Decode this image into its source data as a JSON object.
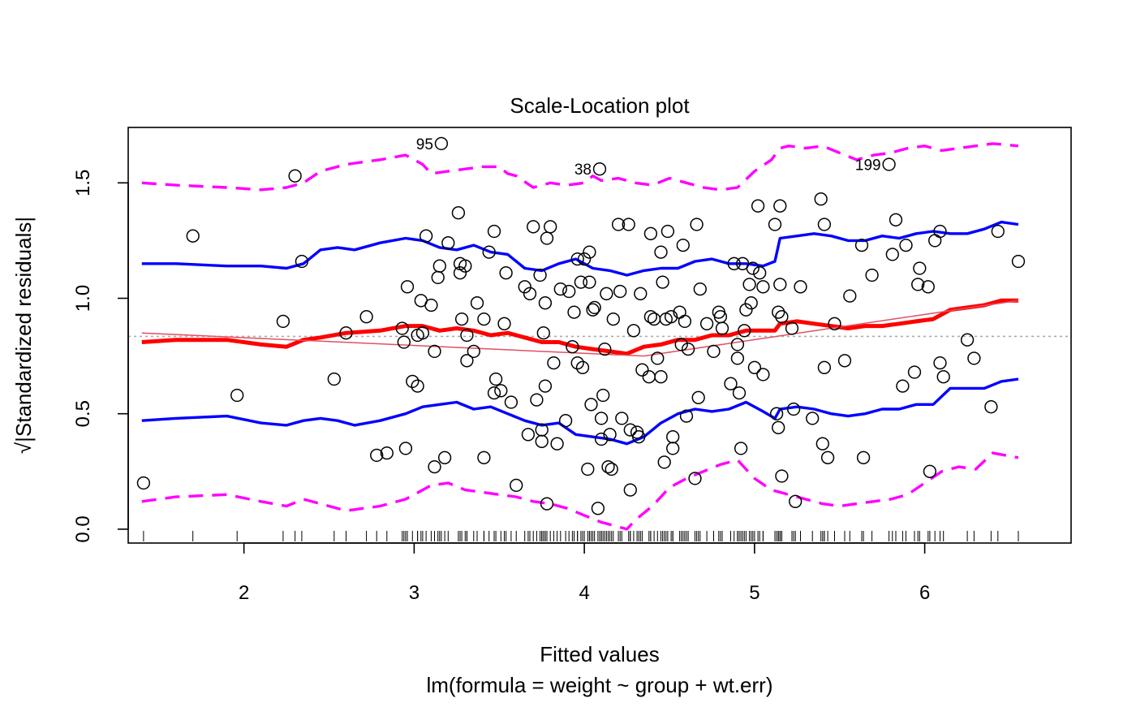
{
  "chart_data": {
    "type": "scatter",
    "title": "Scale-Location plot",
    "xlabel": "Fitted values",
    "subtitle": "lm(formula = weight ~ group + wt.err)",
    "ylabel": "√|Standardized residuals|",
    "xlim": [
      1.32,
      6.86
    ],
    "ylim": [
      -0.06,
      1.74
    ],
    "xticks": [
      2,
      3,
      4,
      5,
      6
    ],
    "yticks": [
      0.0,
      0.5,
      1.0,
      1.5
    ],
    "xtick_labels": [
      "2",
      "3",
      "4",
      "5",
      "6"
    ],
    "ytick_labels": [
      "0.0",
      "0.5",
      "1.0",
      "1.5"
    ],
    "grid": false,
    "reference_line_y": 0.835,
    "point_labels": [
      {
        "label": "95",
        "x": 3.16,
        "y": 1.67
      },
      {
        "label": "38",
        "x": 4.09,
        "y": 1.56
      },
      {
        "label": "199",
        "x": 5.79,
        "y": 1.58
      }
    ],
    "points": [
      [
        1.41,
        0.2
      ],
      [
        1.7,
        1.27
      ],
      [
        1.96,
        0.58
      ],
      [
        2.23,
        0.9
      ],
      [
        2.3,
        1.53
      ],
      [
        2.34,
        1.16
      ],
      [
        2.53,
        0.65
      ],
      [
        2.6,
        0.85
      ],
      [
        2.72,
        0.92
      ],
      [
        2.78,
        0.32
      ],
      [
        2.84,
        0.33
      ],
      [
        2.93,
        0.87
      ],
      [
        2.94,
        0.81
      ],
      [
        2.95,
        0.35
      ],
      [
        2.96,
        1.05
      ],
      [
        2.99,
        0.64
      ],
      [
        3.02,
        0.62
      ],
      [
        3.02,
        0.84
      ],
      [
        3.04,
        0.99
      ],
      [
        3.05,
        0.85
      ],
      [
        3.07,
        1.27
      ],
      [
        3.1,
        0.97
      ],
      [
        3.12,
        0.27
      ],
      [
        3.12,
        0.77
      ],
      [
        3.14,
        1.09
      ],
      [
        3.16,
        1.67
      ],
      [
        3.15,
        1.14
      ],
      [
        3.18,
        0.31
      ],
      [
        3.2,
        1.24
      ],
      [
        3.26,
        1.37
      ],
      [
        3.27,
        1.11
      ],
      [
        3.27,
        1.15
      ],
      [
        3.28,
        0.91
      ],
      [
        3.3,
        1.14
      ],
      [
        3.31,
        0.73
      ],
      [
        3.31,
        0.84
      ],
      [
        3.35,
        0.77
      ],
      [
        3.37,
        0.98
      ],
      [
        3.41,
        0.31
      ],
      [
        3.41,
        0.91
      ],
      [
        3.44,
        1.2
      ],
      [
        3.47,
        0.59
      ],
      [
        3.47,
        1.29
      ],
      [
        3.48,
        0.65
      ],
      [
        3.51,
        0.6
      ],
      [
        3.54,
        1.11
      ],
      [
        3.53,
        0.89
      ],
      [
        3.57,
        0.55
      ],
      [
        3.6,
        0.19
      ],
      [
        3.65,
        1.05
      ],
      [
        3.67,
        0.41
      ],
      [
        3.68,
        1.02
      ],
      [
        3.7,
        1.31
      ],
      [
        3.72,
        0.56
      ],
      [
        3.74,
        1.1
      ],
      [
        3.75,
        0.38
      ],
      [
        3.75,
        0.43
      ],
      [
        3.76,
        0.85
      ],
      [
        3.77,
        0.62
      ],
      [
        3.77,
        0.98
      ],
      [
        3.78,
        1.26
      ],
      [
        3.78,
        0.11
      ],
      [
        3.8,
        1.31
      ],
      [
        3.82,
        0.72
      ],
      [
        3.84,
        0.37
      ],
      [
        3.86,
        1.04
      ],
      [
        3.89,
        0.47
      ],
      [
        3.91,
        1.03
      ],
      [
        3.93,
        0.79
      ],
      [
        3.94,
        0.94
      ],
      [
        3.96,
        1.17
      ],
      [
        3.96,
        0.72
      ],
      [
        3.98,
        1.07
      ],
      [
        3.99,
        0.7
      ],
      [
        4.0,
        1.17
      ],
      [
        4.02,
        0.26
      ],
      [
        4.03,
        1.07
      ],
      [
        4.03,
        1.2
      ],
      [
        4.04,
        0.54
      ],
      [
        4.05,
        0.95
      ],
      [
        4.06,
        0.96
      ],
      [
        4.08,
        0.09
      ],
      [
        4.09,
        1.56
      ],
      [
        4.1,
        0.39
      ],
      [
        4.1,
        0.48
      ],
      [
        4.11,
        0.58
      ],
      [
        4.12,
        0.78
      ],
      [
        4.13,
        1.02
      ],
      [
        4.14,
        0.27
      ],
      [
        4.15,
        0.41
      ],
      [
        4.16,
        0.26
      ],
      [
        4.17,
        0.91
      ],
      [
        4.2,
        1.32
      ],
      [
        4.21,
        1.03
      ],
      [
        4.22,
        0.48
      ],
      [
        4.26,
        1.32
      ],
      [
        4.27,
        0.17
      ],
      [
        4.27,
        0.43
      ],
      [
        4.29,
        0.86
      ],
      [
        4.31,
        0.42
      ],
      [
        4.32,
        0.4
      ],
      [
        4.33,
        1.02
      ],
      [
        4.34,
        0.69
      ],
      [
        4.38,
        0.66
      ],
      [
        4.39,
        0.92
      ],
      [
        4.39,
        1.28
      ],
      [
        4.41,
        0.91
      ],
      [
        4.43,
        0.74
      ],
      [
        4.45,
        0.66
      ],
      [
        4.45,
        1.2
      ],
      [
        4.47,
        0.29
      ],
      [
        4.46,
        1.07
      ],
      [
        4.48,
        0.91
      ],
      [
        4.49,
        1.29
      ],
      [
        4.51,
        0.92
      ],
      [
        4.52,
        0.4
      ],
      [
        4.52,
        0.35
      ],
      [
        4.56,
        0.94
      ],
      [
        4.57,
        0.8
      ],
      [
        4.58,
        1.23
      ],
      [
        4.59,
        0.9
      ],
      [
        4.6,
        0.49
      ],
      [
        4.61,
        0.78
      ],
      [
        4.65,
        0.22
      ],
      [
        4.66,
        1.32
      ],
      [
        4.67,
        0.57
      ],
      [
        4.68,
        1.04
      ],
      [
        4.72,
        0.89
      ],
      [
        4.76,
        0.77
      ],
      [
        4.79,
        0.94
      ],
      [
        4.8,
        0.92
      ],
      [
        4.81,
        0.87
      ],
      [
        4.86,
        0.63
      ],
      [
        4.88,
        1.15
      ],
      [
        4.9,
        0.74
      ],
      [
        4.9,
        0.8
      ],
      [
        4.91,
        0.59
      ],
      [
        4.92,
        0.35
      ],
      [
        4.93,
        1.15
      ],
      [
        4.94,
        0.86
      ],
      [
        4.95,
        0.95
      ],
      [
        4.97,
        1.06
      ],
      [
        4.98,
        0.98
      ],
      [
        4.99,
        1.13
      ],
      [
        5.0,
        0.7
      ],
      [
        5.02,
        1.4
      ],
      [
        5.03,
        1.11
      ],
      [
        5.05,
        1.05
      ],
      [
        5.05,
        0.67
      ],
      [
        5.12,
        1.32
      ],
      [
        5.13,
        0.5
      ],
      [
        5.14,
        0.44
      ],
      [
        5.14,
        0.94
      ],
      [
        5.15,
        1.06
      ],
      [
        5.15,
        1.4
      ],
      [
        5.16,
        0.92
      ],
      [
        5.16,
        0.23
      ],
      [
        5.22,
        0.87
      ],
      [
        5.23,
        0.52
      ],
      [
        5.24,
        0.12
      ],
      [
        5.27,
        1.05
      ],
      [
        5.34,
        0.48
      ],
      [
        5.39,
        1.43
      ],
      [
        5.4,
        0.37
      ],
      [
        5.41,
        1.32
      ],
      [
        5.41,
        0.7
      ],
      [
        5.43,
        0.31
      ],
      [
        5.47,
        0.89
      ],
      [
        5.53,
        0.73
      ],
      [
        5.56,
        1.01
      ],
      [
        5.63,
        1.23
      ],
      [
        5.64,
        0.31
      ],
      [
        5.69,
        1.1
      ],
      [
        5.79,
        1.58
      ],
      [
        5.81,
        1.19
      ],
      [
        5.83,
        1.34
      ],
      [
        5.87,
        0.62
      ],
      [
        5.89,
        1.23
      ],
      [
        5.94,
        0.68
      ],
      [
        5.96,
        1.06
      ],
      [
        5.97,
        1.13
      ],
      [
        6.02,
        1.05
      ],
      [
        6.03,
        0.25
      ],
      [
        6.06,
        1.25
      ],
      [
        6.09,
        0.72
      ],
      [
        6.09,
        1.29
      ],
      [
        6.11,
        0.66
      ],
      [
        6.25,
        0.82
      ],
      [
        6.29,
        0.74
      ],
      [
        6.39,
        0.53
      ],
      [
        6.43,
        1.29
      ],
      [
        6.55,
        1.16
      ]
    ],
    "series": [
      {
        "name": "",
        "color": "#ff00ff",
        "style": "dashed",
        "x": [
          1.4,
          1.6,
          1.9,
          2.1,
          2.25,
          2.35,
          2.45,
          2.6,
          2.8,
          2.95,
          3.05,
          3.1,
          3.2,
          3.3,
          3.4,
          3.5,
          3.55,
          3.6,
          3.7,
          3.8,
          3.9,
          4.0,
          4.05,
          4.1,
          4.2,
          4.3,
          4.4,
          4.5,
          4.6,
          4.7,
          4.8,
          4.9,
          5.0,
          5.1,
          5.15,
          5.2,
          5.3,
          5.4,
          5.5,
          5.6,
          5.7,
          5.8,
          5.9,
          6.0,
          6.1,
          6.2,
          6.3,
          6.4,
          6.55
        ],
        "y": [
          1.5,
          1.49,
          1.48,
          1.47,
          1.48,
          1.5,
          1.55,
          1.58,
          1.6,
          1.62,
          1.58,
          1.54,
          1.55,
          1.56,
          1.57,
          1.57,
          1.54,
          1.53,
          1.48,
          1.5,
          1.49,
          1.5,
          1.53,
          1.51,
          1.52,
          1.5,
          1.49,
          1.52,
          1.5,
          1.48,
          1.47,
          1.48,
          1.55,
          1.6,
          1.65,
          1.66,
          1.65,
          1.66,
          1.63,
          1.6,
          1.62,
          1.63,
          1.65,
          1.66,
          1.64,
          1.65,
          1.66,
          1.67,
          1.66
        ]
      },
      {
        "name": "",
        "color": "#ff00ff",
        "style": "dashed",
        "x": [
          1.4,
          1.6,
          1.9,
          2.1,
          2.25,
          2.35,
          2.45,
          2.6,
          2.8,
          2.95,
          3.05,
          3.1,
          3.2,
          3.3,
          3.4,
          3.5,
          3.6,
          3.7,
          3.8,
          3.9,
          4.0,
          4.1,
          4.2,
          4.25,
          4.3,
          4.4,
          4.5,
          4.6,
          4.7,
          4.8,
          4.9,
          5.0,
          5.1,
          5.2,
          5.3,
          5.4,
          5.5,
          5.6,
          5.7,
          5.8,
          5.9,
          6.0,
          6.1,
          6.2,
          6.3,
          6.4,
          6.55
        ],
        "y": [
          0.12,
          0.14,
          0.15,
          0.12,
          0.1,
          0.13,
          0.11,
          0.08,
          0.1,
          0.13,
          0.17,
          0.19,
          0.2,
          0.17,
          0.16,
          0.15,
          0.14,
          0.12,
          0.11,
          0.09,
          0.06,
          0.03,
          0.01,
          0.0,
          0.04,
          0.1,
          0.18,
          0.22,
          0.25,
          0.28,
          0.3,
          0.22,
          0.17,
          0.15,
          0.13,
          0.11,
          0.1,
          0.11,
          0.12,
          0.13,
          0.15,
          0.2,
          0.25,
          0.27,
          0.26,
          0.33,
          0.31
        ]
      },
      {
        "name": "",
        "color": "#0000ff",
        "style": "solid",
        "x": [
          1.4,
          1.6,
          1.9,
          2.1,
          2.25,
          2.35,
          2.45,
          2.55,
          2.65,
          2.8,
          2.95,
          3.05,
          3.15,
          3.25,
          3.35,
          3.45,
          3.55,
          3.65,
          3.75,
          3.85,
          3.95,
          4.05,
          4.15,
          4.25,
          4.35,
          4.45,
          4.55,
          4.65,
          4.75,
          4.85,
          4.95,
          5.05,
          5.12,
          5.15,
          5.25,
          5.35,
          5.45,
          5.55,
          5.65,
          5.75,
          5.85,
          5.95,
          6.05,
          6.15,
          6.25,
          6.35,
          6.45,
          6.55
        ],
        "y": [
          1.15,
          1.15,
          1.14,
          1.14,
          1.13,
          1.15,
          1.21,
          1.22,
          1.21,
          1.24,
          1.26,
          1.25,
          1.22,
          1.21,
          1.23,
          1.2,
          1.19,
          1.13,
          1.12,
          1.15,
          1.17,
          1.13,
          1.12,
          1.1,
          1.12,
          1.13,
          1.13,
          1.16,
          1.17,
          1.15,
          1.15,
          1.14,
          1.16,
          1.26,
          1.27,
          1.28,
          1.27,
          1.25,
          1.25,
          1.27,
          1.26,
          1.28,
          1.29,
          1.28,
          1.28,
          1.3,
          1.33,
          1.32
        ]
      },
      {
        "name": "",
        "color": "#0000ff",
        "style": "solid",
        "x": [
          1.4,
          1.6,
          1.9,
          2.1,
          2.25,
          2.35,
          2.45,
          2.55,
          2.65,
          2.8,
          2.95,
          3.05,
          3.15,
          3.25,
          3.35,
          3.45,
          3.55,
          3.65,
          3.75,
          3.85,
          3.95,
          4.05,
          4.15,
          4.25,
          4.35,
          4.45,
          4.55,
          4.65,
          4.75,
          4.85,
          4.95,
          5.05,
          5.12,
          5.15,
          5.25,
          5.35,
          5.45,
          5.55,
          5.65,
          5.75,
          5.85,
          5.95,
          6.05,
          6.15,
          6.25,
          6.35,
          6.45,
          6.55
        ],
        "y": [
          0.47,
          0.48,
          0.49,
          0.46,
          0.45,
          0.47,
          0.48,
          0.47,
          0.45,
          0.47,
          0.5,
          0.53,
          0.54,
          0.55,
          0.52,
          0.53,
          0.5,
          0.47,
          0.45,
          0.46,
          0.41,
          0.4,
          0.39,
          0.37,
          0.4,
          0.46,
          0.5,
          0.52,
          0.51,
          0.52,
          0.55,
          0.51,
          0.48,
          0.52,
          0.53,
          0.52,
          0.5,
          0.49,
          0.5,
          0.52,
          0.52,
          0.54,
          0.54,
          0.61,
          0.61,
          0.61,
          0.64,
          0.65
        ]
      },
      {
        "name": "",
        "color": "#ff0000",
        "style": "solid",
        "x": [
          1.4,
          1.6,
          1.9,
          2.1,
          2.25,
          2.35,
          2.45,
          2.6,
          2.8,
          2.95,
          3.05,
          3.15,
          3.25,
          3.35,
          3.45,
          3.55,
          3.65,
          3.75,
          3.85,
          3.95,
          4.05,
          4.15,
          4.25,
          4.35,
          4.45,
          4.55,
          4.65,
          4.75,
          4.85,
          4.95,
          5.05,
          5.12,
          5.15,
          5.25,
          5.35,
          5.45,
          5.55,
          5.65,
          5.75,
          5.85,
          5.95,
          6.05,
          6.15,
          6.25,
          6.35,
          6.45,
          6.55
        ],
        "y": [
          0.81,
          0.82,
          0.82,
          0.8,
          0.79,
          0.82,
          0.83,
          0.85,
          0.86,
          0.88,
          0.88,
          0.86,
          0.87,
          0.86,
          0.84,
          0.85,
          0.83,
          0.81,
          0.81,
          0.79,
          0.78,
          0.77,
          0.76,
          0.79,
          0.8,
          0.82,
          0.82,
          0.84,
          0.84,
          0.86,
          0.86,
          0.86,
          0.89,
          0.9,
          0.89,
          0.88,
          0.87,
          0.88,
          0.88,
          0.89,
          0.9,
          0.91,
          0.95,
          0.96,
          0.97,
          0.99,
          0.99
        ]
      },
      {
        "name": "",
        "color": "#e05060",
        "style": "solid-thin",
        "x": [
          1.4,
          4.35,
          6.55
        ],
        "y": [
          0.85,
          0.75,
          0.99
        ]
      }
    ]
  }
}
